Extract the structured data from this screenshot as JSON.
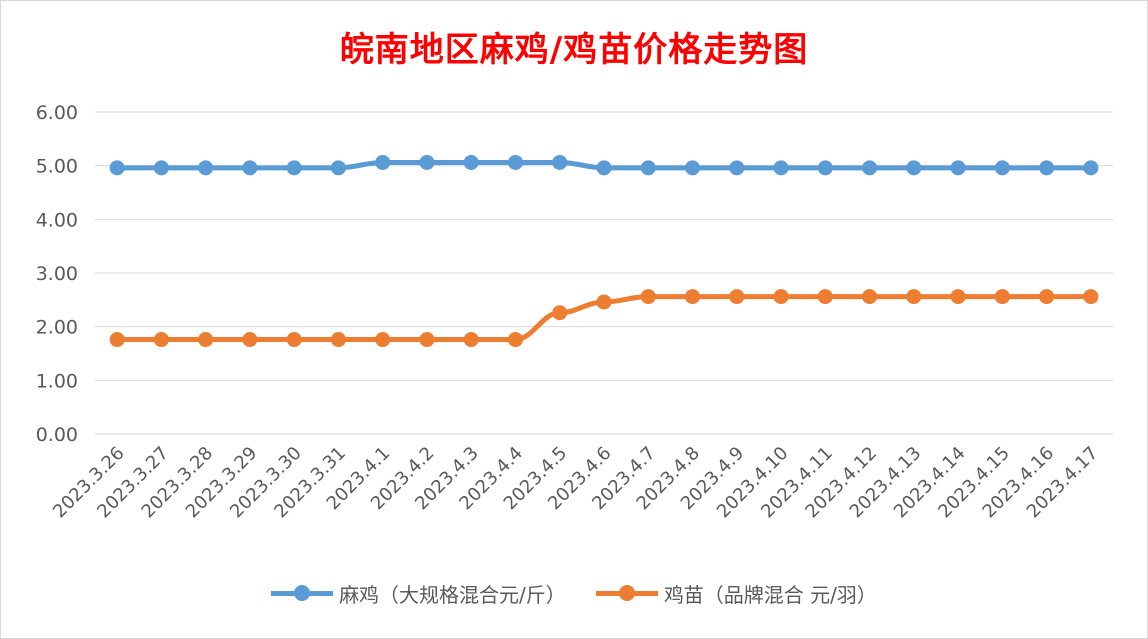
{
  "colors": {
    "title": "#ff0000",
    "series_1": "#5b9bd5",
    "series_2": "#ed7d31",
    "grid": "#d9d9d9",
    "text": "#595959"
  },
  "chart_data": {
    "type": "line",
    "title": "皖南地区麻鸡/鸡苗价格走势图",
    "x": [
      "2023.3.26",
      "2023.3.27",
      "2023.3.28",
      "2023.3.29",
      "2023.3.30",
      "2023.3.31",
      "2023.4.1",
      "2023.4.2",
      "2023.4.3",
      "2023.4.4",
      "2023.4.5",
      "2023.4.6",
      "2023.4.7",
      "2023.4.8",
      "2023.4.9",
      "2023.4.10",
      "2023.4.11",
      "2023.4.12",
      "2023.4.13",
      "2023.4.14",
      "2023.4.15",
      "2023.4.16",
      "2023.4.17"
    ],
    "yticks": [
      "0.00",
      "1.00",
      "2.00",
      "3.00",
      "4.00",
      "5.00",
      "6.00"
    ],
    "ylim": [
      0,
      6
    ],
    "grid": true,
    "legend_position": "bottom",
    "series": [
      {
        "name": "麻鸡（大规格混合元/斤）",
        "color": "#5b9bd5",
        "values": [
          4.96,
          4.96,
          4.96,
          4.96,
          4.96,
          4.96,
          5.06,
          5.06,
          5.06,
          5.06,
          5.06,
          4.96,
          4.96,
          4.96,
          4.96,
          4.96,
          4.96,
          4.96,
          4.96,
          4.96,
          4.96,
          4.96,
          4.96
        ]
      },
      {
        "name": "鸡苗（品牌混合 元/羽）",
        "color": "#ed7d31",
        "values": [
          1.76,
          1.76,
          1.76,
          1.76,
          1.76,
          1.76,
          1.76,
          1.76,
          1.76,
          1.76,
          2.26,
          2.46,
          2.56,
          2.56,
          2.56,
          2.56,
          2.56,
          2.56,
          2.56,
          2.56,
          2.56,
          2.56,
          2.56
        ]
      }
    ]
  }
}
